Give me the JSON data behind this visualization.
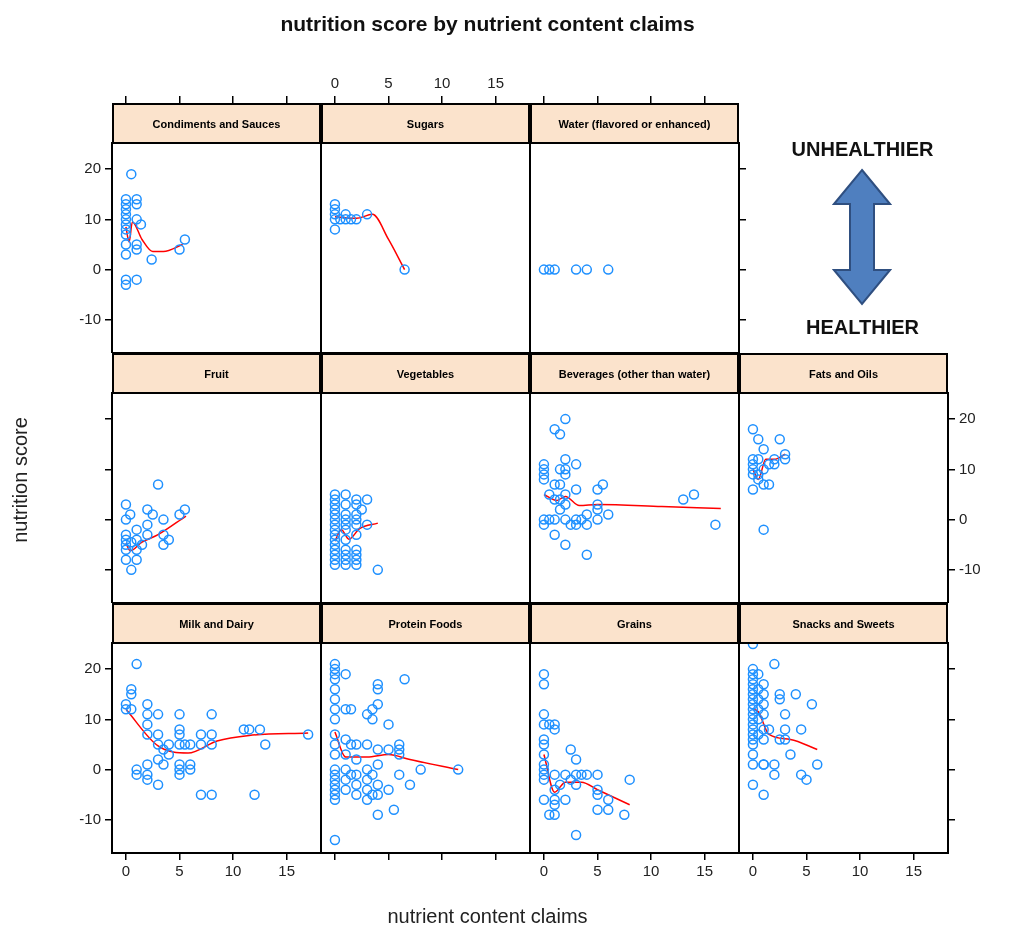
{
  "chart_data": [
    {
      "type": "scatter",
      "title": "Condiments and Sauces",
      "annotations": [
        "nutrition score by nutrient content claims",
        "UNHEALTHIER",
        "HEALTHIER"
      ],
      "xlim": [
        -1.3,
        18.2
      ],
      "xticks": [
        0,
        5,
        10,
        15
      ],
      "ylim": [
        -16.6,
        25.2
      ],
      "yticks": [
        -10,
        0,
        10,
        20
      ],
      "tick_labels": "y",
      "series": [
        {
          "type": "scatter",
          "marker": "circle",
          "color": "#1e90ff",
          "x": [
            0,
            0,
            0,
            0,
            0,
            0,
            0,
            0,
            0,
            0,
            0,
            0,
            0.5,
            1,
            1,
            1,
            1,
            1,
            1,
            1.4,
            2.4,
            5,
            5.5
          ],
          "values": [
            14,
            13,
            12,
            11,
            10,
            9,
            8,
            7,
            5,
            3,
            -2,
            -3,
            19,
            14,
            13,
            10,
            5,
            4,
            -2,
            9,
            2,
            4,
            6
          ]
        },
        {
          "type": "line",
          "marker": "none",
          "color": "#ff0000",
          "x": [
            0,
            0.3,
            0.6,
            1.5,
            2.5,
            3.5,
            5.3
          ],
          "values": [
            8.5,
            5.5,
            9.5,
            6,
            3.6,
            3.6,
            5
          ]
        }
      ]
    },
    {
      "type": "scatter",
      "title": "Sugars",
      "xlim": [
        -1.3,
        18.2
      ],
      "xticks": [
        0,
        5,
        10,
        15
      ],
      "ylim": [
        -16.6,
        25.2
      ],
      "yticks": [
        -10,
        0,
        10,
        20
      ],
      "tick_labels": "x",
      "series": [
        {
          "type": "scatter",
          "marker": "circle",
          "color": "#1e90ff",
          "x": [
            0,
            0,
            0,
            0,
            0,
            0.5,
            1,
            1,
            1.5,
            2,
            3,
            6.5
          ],
          "values": [
            13,
            12,
            11,
            10,
            8,
            10,
            11,
            10,
            10,
            10,
            11,
            0
          ]
        },
        {
          "type": "line",
          "marker": "none",
          "color": "#ff0000",
          "x": [
            0,
            2,
            3.5,
            5,
            6.5
          ],
          "values": [
            10.5,
            10.2,
            11,
            6,
            0
          ]
        }
      ]
    },
    {
      "type": "scatter",
      "title": "Water (flavored or enhanced)",
      "xlim": [
        -1.3,
        18.2
      ],
      "xticks": [
        0,
        5,
        10,
        15
      ],
      "ylim": [
        -16.6,
        25.2
      ],
      "yticks": [
        -10,
        0,
        10,
        20
      ],
      "tick_labels": false,
      "series": [
        {
          "type": "scatter",
          "marker": "circle",
          "color": "#1e90ff",
          "x": [
            0,
            0.5,
            1,
            3,
            4,
            6
          ],
          "values": [
            0,
            0,
            0,
            0,
            0,
            0
          ]
        }
      ]
    },
    {
      "type": "scatter",
      "title": "Fruit",
      "ylabel": "nutrition score",
      "xlim": [
        -1.3,
        18.2
      ],
      "xticks": [
        0,
        5,
        10,
        15
      ],
      "ylim": [
        -16.6,
        25.2
      ],
      "yticks": [
        -10,
        0,
        10,
        20
      ],
      "tick_labels": false,
      "series": [
        {
          "type": "scatter",
          "marker": "circle",
          "color": "#1e90ff",
          "x": [
            0,
            0.4,
            0,
            2,
            2.5,
            3,
            3.5,
            5,
            5.5,
            2,
            1,
            0,
            2,
            3.5,
            4,
            3.5,
            0,
            0,
            1.5,
            1,
            0,
            0,
            1,
            0.5,
            1,
            0.5
          ],
          "values": [
            3,
            1,
            0,
            2,
            1,
            7,
            0,
            1,
            2,
            -1,
            -2,
            -3,
            -3,
            -3,
            -4,
            -5,
            -4,
            -5,
            -5,
            -6,
            -6,
            -8,
            -8,
            -10,
            -4,
            -4.5
          ]
        },
        {
          "type": "line",
          "marker": "none",
          "color": "#ff0000",
          "x": [
            0,
            0.4,
            1.5,
            3,
            5.6
          ],
          "values": [
            -4.7,
            -6.2,
            -4.5,
            -3,
            0.7
          ]
        }
      ]
    },
    {
      "type": "scatter",
      "title": "Vegetables",
      "xlim": [
        -1.3,
        18.2
      ],
      "xticks": [
        0,
        5,
        10,
        15
      ],
      "ylim": [
        -16.6,
        25.2
      ],
      "yticks": [
        -10,
        0,
        10,
        20
      ],
      "tick_labels": false,
      "series": [
        {
          "type": "scatter",
          "marker": "circle",
          "color": "#1e90ff",
          "x": [
            0,
            0,
            0,
            0,
            0,
            0,
            0,
            0,
            0,
            0,
            0,
            0,
            0,
            0,
            0,
            1,
            1,
            1,
            1,
            1,
            1,
            1,
            1,
            1,
            1,
            1,
            2,
            2,
            2,
            2,
            2,
            2,
            2,
            2,
            2,
            2,
            3,
            2.5,
            3,
            4
          ],
          "values": [
            5,
            4,
            3,
            2,
            1,
            0,
            -1,
            -2,
            -3,
            -4,
            -5,
            -6,
            -7,
            -8,
            -9,
            5,
            3,
            1,
            0,
            -1,
            -2,
            -4,
            -6,
            -7,
            -8,
            -9,
            4,
            3,
            1,
            0,
            -1,
            -3,
            -6,
            -7,
            -8,
            -9,
            4,
            2,
            -1,
            -10
          ]
        },
        {
          "type": "line",
          "marker": "none",
          "color": "#ff0000",
          "x": [
            0,
            0.6,
            1.3,
            2.3,
            4
          ],
          "values": [
            -4.3,
            -2,
            -3.9,
            -1.8,
            -0.7
          ]
        }
      ]
    },
    {
      "type": "scatter",
      "title": "Beverages (other than water)",
      "xlim": [
        -1.3,
        18.2
      ],
      "xticks": [
        0,
        5,
        10,
        15
      ],
      "ylim": [
        -16.6,
        25.2
      ],
      "yticks": [
        -10,
        0,
        10,
        20
      ],
      "tick_labels": false,
      "series": [
        {
          "type": "scatter",
          "marker": "circle",
          "color": "#1e90ff",
          "x": [
            2,
            1,
            1.5,
            0,
            0,
            0,
            0,
            2,
            1.5,
            2,
            3,
            2,
            1,
            1.5,
            3,
            0.5,
            1,
            1.5,
            2,
            5,
            5.5,
            5,
            1.5,
            2,
            0,
            0.5,
            1,
            2,
            2.5,
            3,
            3.5,
            4,
            4,
            5,
            5,
            6,
            13,
            14,
            16,
            1,
            2,
            4,
            0,
            3
          ],
          "values": [
            20,
            18,
            17,
            11,
            10,
            9,
            8,
            12,
            10,
            10,
            11,
            9,
            7,
            7,
            6,
            5,
            4,
            4,
            5,
            6,
            7,
            3,
            2,
            3,
            0,
            0,
            0,
            0,
            -1,
            -1,
            0,
            1,
            -1,
            2,
            0,
            1,
            4,
            5,
            -1,
            -3,
            -5,
            -7,
            -1,
            0
          ]
        },
        {
          "type": "line",
          "marker": "none",
          "color": "#ff0000",
          "x": [
            0,
            1.2,
            2,
            3.3,
            5,
            11,
            16.5
          ],
          "values": [
            5,
            3.8,
            4.6,
            2.8,
            3,
            2.6,
            2.2
          ]
        }
      ]
    },
    {
      "type": "scatter",
      "title": "Fats and Oils",
      "xlim": [
        -1.3,
        18.2
      ],
      "xticks": [
        0,
        5,
        10,
        15
      ],
      "ylim": [
        -16.6,
        25.2
      ],
      "yticks": [
        -10,
        0,
        10,
        20
      ],
      "tick_labels": "y",
      "series": [
        {
          "type": "scatter",
          "marker": "circle",
          "color": "#1e90ff",
          "x": [
            0,
            0.5,
            2.5,
            1,
            0,
            0,
            0,
            0,
            0.5,
            1,
            1.5,
            0,
            2,
            3,
            3,
            2,
            1.5,
            0.5,
            1,
            1,
            0.5
          ],
          "values": [
            18,
            16,
            16,
            14,
            12,
            11,
            10,
            9,
            8,
            7,
            7,
            6,
            12,
            13,
            12,
            11,
            11,
            12,
            -2,
            10,
            9
          ]
        },
        {
          "type": "line",
          "marker": "none",
          "color": "#ff0000",
          "x": [
            0,
            0.5,
            1.2,
            2,
            3
          ],
          "values": [
            10,
            8,
            12,
            12,
            13
          ]
        }
      ]
    },
    {
      "type": "scatter",
      "title": "Milk and Dairy",
      "xlim": [
        -1.3,
        18.2
      ],
      "xticks": [
        0,
        5,
        10,
        15
      ],
      "ylim": [
        -16.6,
        25.2
      ],
      "yticks": [
        -10,
        0,
        10,
        20
      ],
      "series": [
        {
          "type": "scatter",
          "marker": "circle",
          "color": "#1e90ff",
          "x": [
            1,
            0.5,
            0.5,
            0,
            0,
            0.5,
            2,
            2,
            3,
            5,
            8,
            2,
            2,
            3,
            5,
            5,
            3,
            4,
            5,
            5.5,
            6,
            7,
            7,
            8,
            8,
            3.5,
            4,
            11,
            11.5,
            12.5,
            13,
            17,
            3,
            3.5,
            5,
            6,
            2,
            1,
            1,
            2,
            2,
            5,
            5,
            6,
            3,
            7,
            8,
            12
          ],
          "values": [
            21,
            16,
            15,
            13,
            12,
            12,
            13,
            11,
            11,
            11,
            11,
            9,
            7,
            7,
            8,
            7,
            5,
            5,
            5,
            5,
            5,
            5,
            7,
            7,
            5,
            4,
            3,
            8,
            8,
            8,
            5,
            7,
            2,
            1,
            1,
            1,
            1,
            0,
            -1,
            -1,
            -2,
            0,
            -1,
            0,
            -3,
            -5,
            -5,
            -5
          ]
        },
        {
          "type": "line",
          "marker": "none",
          "color": "#ff0000",
          "x": [
            0,
            3,
            5.8,
            8.5,
            11.5,
            17
          ],
          "values": [
            12,
            4.7,
            3.3,
            5.7,
            6.8,
            7.3
          ]
        }
      ]
    },
    {
      "type": "scatter",
      "title": "Protein Foods",
      "xlabel": "nutrient content claims",
      "xlim": [
        -1.3,
        18.2
      ],
      "xticks": [
        0,
        5,
        10,
        15
      ],
      "ylim": [
        -16.6,
        25.2
      ],
      "yticks": [
        -10,
        0,
        10,
        20
      ],
      "tick_labels": false,
      "series": [
        {
          "type": "scatter",
          "marker": "circle",
          "color": "#1e90ff",
          "x": [
            0,
            0,
            0,
            0,
            0,
            0,
            0,
            0,
            0,
            0,
            0,
            0,
            0,
            0,
            0,
            0,
            0,
            0,
            0,
            1,
            1,
            1,
            1,
            1,
            1,
            1,
            1.5,
            1.5,
            1.5,
            2,
            2,
            2,
            2,
            2,
            3,
            3,
            3,
            3,
            3,
            3,
            3.5,
            3.5,
            3.5,
            3.5,
            4,
            4,
            4,
            4,
            4,
            4,
            4,
            4,
            5,
            5,
            5,
            6,
            6,
            6,
            6,
            6.5,
            7,
            8,
            11.5,
            5.5
          ],
          "values": [
            21,
            20,
            19,
            18,
            16,
            14,
            12,
            10,
            7,
            5,
            3,
            0,
            -1,
            -2,
            -3,
            -4,
            -5,
            -6,
            -14,
            19,
            12,
            6,
            3,
            0,
            -2,
            -4,
            12,
            5,
            -1,
            5,
            2,
            -1,
            -3,
            -5,
            11,
            5,
            0,
            -2,
            -4,
            -6,
            12,
            10,
            -1,
            -5,
            17,
            16,
            13,
            4,
            1,
            -3,
            -5,
            -9,
            9,
            4,
            -4,
            5,
            4,
            3,
            -1,
            18,
            -3,
            0,
            0,
            -8
          ]
        },
        {
          "type": "line",
          "marker": "none",
          "color": "#ff0000",
          "x": [
            0,
            1,
            3,
            5,
            7,
            11.5
          ],
          "values": [
            7.5,
            2.5,
            2.5,
            3,
            2,
            0
          ]
        }
      ]
    },
    {
      "type": "scatter",
      "title": "Grains",
      "xlim": [
        -1.3,
        18.2
      ],
      "xticks": [
        0,
        5,
        10,
        15
      ],
      "ylim": [
        -16.6,
        25.2
      ],
      "yticks": [
        -10,
        0,
        10,
        20
      ],
      "tick_labels": "x",
      "series": [
        {
          "type": "scatter",
          "marker": "circle",
          "color": "#1e90ff",
          "x": [
            0,
            0,
            0,
            0,
            0.5,
            1,
            1,
            0,
            0,
            0,
            0,
            0,
            0,
            0,
            0,
            1,
            1,
            1,
            1,
            0.5,
            1,
            2,
            2,
            2.5,
            3,
            3,
            2.5,
            3.5,
            4,
            5,
            5,
            5,
            6,
            5,
            6,
            7.5,
            8,
            3,
            1.5,
            3
          ],
          "values": [
            19,
            17,
            11,
            9,
            9,
            9,
            8,
            6,
            5,
            3,
            1,
            0,
            -1,
            -2,
            -6,
            -1,
            -4,
            -6,
            -7,
            -9,
            -9,
            -6,
            -1,
            -2,
            -1,
            2,
            4,
            -1,
            -1,
            -1,
            -4,
            -5,
            -6,
            -8,
            -8,
            -9,
            -2,
            -13,
            -3,
            -3
          ]
        },
        {
          "type": "line",
          "marker": "none",
          "color": "#ff0000",
          "x": [
            0,
            1,
            2,
            3.5,
            5,
            8
          ],
          "values": [
            3,
            -4.5,
            -2.5,
            -2.5,
            -4,
            -7
          ]
        }
      ]
    },
    {
      "type": "scatter",
      "title": "Snacks and Sweets",
      "xlim": [
        -1.3,
        18.2
      ],
      "xticks": [
        0,
        5,
        10,
        15
      ],
      "ylim": [
        -16.6,
        25.2
      ],
      "yticks": [
        -10,
        0,
        10,
        20
      ],
      "tick_labels": "x",
      "series": [
        {
          "type": "scatter",
          "marker": "circle",
          "color": "#1e90ff",
          "x": [
            0,
            0,
            0,
            0,
            0,
            0,
            0,
            0,
            0,
            0,
            0,
            0,
            0,
            0,
            0,
            0,
            0,
            0,
            0,
            0,
            0.5,
            0.5,
            0.5,
            0.5,
            0.5,
            0.5,
            1,
            1,
            1,
            1,
            1,
            1,
            1,
            1,
            1,
            2,
            2.5,
            2.5,
            4,
            5.5,
            3,
            1.5,
            3,
            4.5,
            2.5,
            3,
            3.5,
            6,
            2,
            2,
            4.5,
            5
          ],
          "values": [
            25,
            20,
            19,
            18,
            17,
            16,
            15,
            14,
            13,
            12,
            11,
            10,
            9,
            8,
            7,
            6,
            5,
            3,
            1,
            -3,
            19,
            16,
            14,
            12,
            10,
            7,
            17,
            15,
            13,
            11,
            8,
            6,
            1,
            -5,
            1,
            21,
            15,
            14,
            15,
            13,
            11,
            8,
            8,
            8,
            6,
            6,
            3,
            1,
            1,
            -1,
            -1,
            -2
          ]
        },
        {
          "type": "line",
          "marker": "none",
          "color": "#ff0000",
          "x": [
            0,
            0.5,
            1.5,
            3.5,
            6
          ],
          "values": [
            12,
            11.5,
            7,
            6,
            4
          ]
        }
      ]
    }
  ]
}
